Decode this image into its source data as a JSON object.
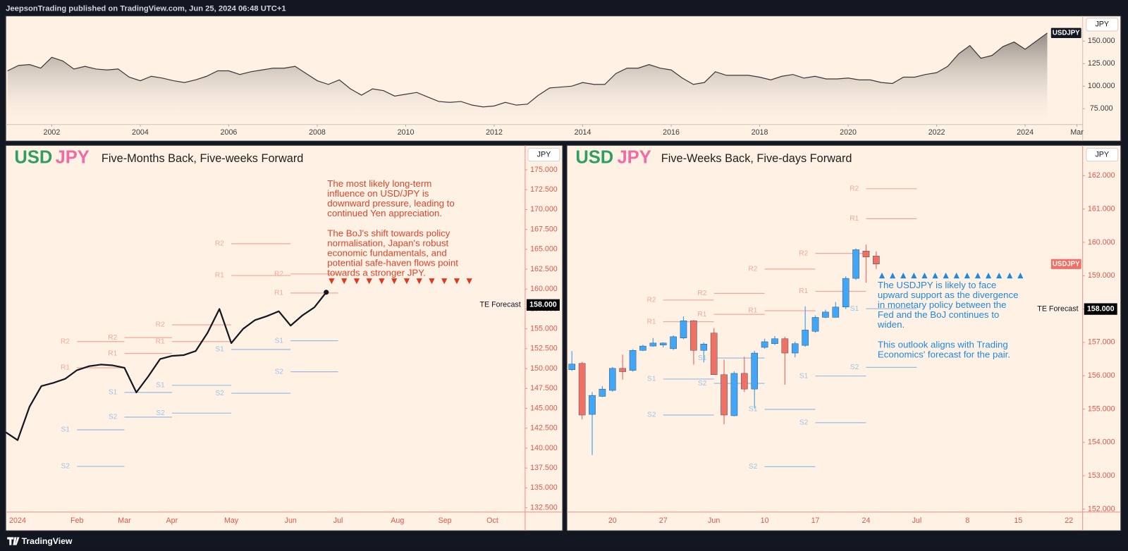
{
  "header": "JeepsonTrading published on TradingView.com, Jun 25, 2024 06:48 UTC+1",
  "footer": "TradingView",
  "chart_data": [
    {
      "type": "area",
      "name": "USDJPY",
      "axis_unit": "JPY",
      "color": "#3b3838",
      "x": [
        2001,
        2001.25,
        2001.5,
        2001.75,
        2002,
        2002.25,
        2002.5,
        2002.75,
        2003,
        2003.25,
        2003.5,
        2003.75,
        2004,
        2004.25,
        2004.5,
        2004.75,
        2005,
        2005.25,
        2005.5,
        2005.75,
        2006,
        2006.25,
        2006.5,
        2006.75,
        2007,
        2007.25,
        2007.5,
        2007.75,
        2008,
        2008.25,
        2008.5,
        2008.75,
        2009,
        2009.25,
        2009.5,
        2009.75,
        2010,
        2010.25,
        2010.5,
        2010.75,
        2011,
        2011.25,
        2011.5,
        2011.75,
        2012,
        2012.25,
        2012.5,
        2012.75,
        2013,
        2013.25,
        2013.5,
        2013.75,
        2014,
        2014.25,
        2014.5,
        2014.75,
        2015,
        2015.25,
        2015.5,
        2015.75,
        2016,
        2016.25,
        2016.5,
        2016.75,
        2017,
        2017.25,
        2017.5,
        2017.75,
        2018,
        2018.25,
        2018.5,
        2018.75,
        2019,
        2019.25,
        2019.5,
        2019.75,
        2020,
        2020.25,
        2020.5,
        2020.75,
        2021,
        2021.25,
        2021.5,
        2021.75,
        2022,
        2022.25,
        2022.5,
        2022.75,
        2023,
        2023.25,
        2023.5,
        2023.75,
        2024,
        2024.25,
        2024.5
      ],
      "values": [
        117,
        123,
        124,
        120,
        132,
        128,
        119,
        122,
        119,
        118,
        119,
        110,
        106,
        111,
        109,
        106,
        104,
        107,
        111,
        117,
        117,
        113,
        116,
        118,
        120,
        120,
        122,
        114,
        106,
        102,
        107,
        97,
        90,
        97,
        95,
        89,
        91,
        93,
        88,
        83,
        82,
        83,
        79,
        77,
        78,
        82,
        79,
        80,
        90,
        98,
        99,
        100,
        104,
        102,
        102,
        114,
        120,
        120,
        124,
        120,
        118,
        109,
        102,
        104,
        116,
        112,
        112,
        112,
        110,
        107,
        111,
        113,
        109,
        111,
        108,
        108,
        109,
        107,
        107,
        104,
        103,
        110,
        110,
        113,
        115,
        122,
        136,
        145,
        131,
        134,
        144,
        149,
        141,
        150,
        159
      ],
      "xlim": [
        2000.96,
        2025.3
      ],
      "xticks": [
        2002,
        2004,
        2006,
        2008,
        2010,
        2012,
        2014,
        2016,
        2018,
        2020,
        2022,
        2024,
        {
          "value": 2025.17,
          "label": "Mar"
        }
      ],
      "ylim": [
        57.45,
        177.9
      ],
      "yticks": [
        {
          "value": 75,
          "label": "75.000"
        },
        {
          "value": 100,
          "label": "100.000"
        },
        {
          "value": 125,
          "label": "125.000"
        },
        {
          "value": 150,
          "label": "150.000"
        }
      ]
    },
    {
      "type": "line",
      "base": "USD",
      "quote": "JPY",
      "title": "Five-Months Back, Five-weeks Forward",
      "axis_unit": "JPY",
      "color": "#131722",
      "categories": [
        null,
        "2024",
        null,
        null,
        null,
        null,
        "Feb",
        null,
        null,
        null,
        "Mar",
        null,
        null,
        null,
        "Apr",
        null,
        null,
        null,
        null,
        "May",
        null,
        null,
        null,
        null,
        "Jun",
        null,
        null,
        null,
        "Jul",
        null,
        null,
        null,
        null,
        "Aug",
        null,
        null,
        null,
        "Sep",
        null,
        null,
        null,
        "Oct",
        null,
        null,
        null
      ],
      "values": [
        142.0,
        141.0,
        145.2,
        147.8,
        148.2,
        148.7,
        149.8,
        150.3,
        150.5,
        150.4,
        150.1,
        147.0,
        149.0,
        151.2,
        151.6,
        151.7,
        152.2,
        154.5,
        157.5,
        153.2,
        155.0,
        156.1,
        156.6,
        157.2,
        155.4,
        156.7,
        157.7,
        159.6,
        null,
        null,
        null,
        null,
        null,
        null,
        null,
        null,
        null,
        null,
        null,
        null,
        null,
        null,
        null,
        null,
        null
      ],
      "ylim": [
        131.96,
        178.07
      ],
      "yticks": [
        {
          "value": 132.5,
          "label": "132.500"
        },
        {
          "value": 135,
          "label": "135.000"
        },
        {
          "value": 137.5,
          "label": "137.500"
        },
        {
          "value": 140,
          "label": "140.000"
        },
        {
          "value": 142.5,
          "label": "142.500"
        },
        {
          "value": 145,
          "label": "145.000"
        },
        {
          "value": 147.5,
          "label": "147.500"
        },
        {
          "value": 150,
          "label": "150.000"
        },
        {
          "value": 152.5,
          "label": "152.500"
        },
        {
          "value": 155,
          "label": "155.000"
        },
        {
          "value": 157.5,
          "label": "157.500"
        },
        {
          "value": 160,
          "label": "160.000"
        },
        {
          "value": 162.5,
          "label": "162.500"
        },
        {
          "value": 165,
          "label": "165.000"
        },
        {
          "value": 167.5,
          "label": "167.500"
        },
        {
          "value": 170,
          "label": "170.000"
        },
        {
          "value": 172.5,
          "label": "172.500"
        },
        {
          "value": 175,
          "label": "175.000"
        }
      ],
      "pivots": [
        {
          "levels": [
            {
              "label": "R2",
              "value": 153.4
            },
            {
              "label": "R1",
              "value": 150.1
            },
            {
              "label": "S1",
              "value": 142.3
            },
            {
              "label": "S2",
              "value": 137.7
            }
          ]
        },
        {
          "levels": [
            {
              "label": "R2",
              "value": 153.9
            },
            {
              "label": "R1",
              "value": 151.9
            },
            {
              "label": "S1",
              "value": 147.0
            },
            {
              "label": "S2",
              "value": 143.9
            }
          ]
        },
        {
          "levels": [
            {
              "label": "R2",
              "value": 155.5
            },
            {
              "label": "R1",
              "value": 153.4
            },
            {
              "label": "S1",
              "value": 147.9
            },
            {
              "label": "S2",
              "value": 144.4
            }
          ]
        },
        {
          "levels": [
            {
              "label": "R2",
              "value": 165.7
            },
            {
              "label": "R1",
              "value": 161.7
            },
            {
              "label": "S1",
              "value": 152.4
            },
            {
              "label": "S2",
              "value": 146.9
            }
          ]
        },
        {
          "levels": [
            {
              "label": "R2",
              "value": 161.9
            },
            {
              "label": "R1",
              "value": 159.5
            },
            {
              "label": "S1",
              "value": 153.5
            },
            {
              "label": "S2",
              "value": 149.6
            }
          ]
        }
      ],
      "forecast": {
        "text": "TE Forecast",
        "value": 158,
        "value_label": "158.000"
      },
      "annotation": [
        [
          "The most likely long-term",
          "influence on USD/JPY is",
          "downward pressure, leading to",
          "continued Yen appreciation."
        ],
        [
          "The BoJ's shift towards policy",
          "normalisation, Japan's robust",
          "economic fundamentals, and",
          "potential safe-haven flows point",
          "towards a stronger JPY."
        ]
      ],
      "annotation_color": "#e0432a"
    },
    {
      "type": "candlestick",
      "name": "USDJPY",
      "base": "USD",
      "quote": "JPY",
      "title": "Five-Weeks Back, Five-days Forward",
      "axis_unit": "JPY",
      "up_color": "#42a5f5",
      "down_color": "#ef7166",
      "categories": [
        null,
        null,
        null,
        null,
        "20",
        null,
        null,
        null,
        null,
        "27",
        null,
        null,
        null,
        null,
        "Jun",
        null,
        null,
        null,
        null,
        "10",
        null,
        null,
        null,
        null,
        "17",
        null,
        null,
        null,
        null,
        "24",
        null,
        null,
        null,
        null,
        "Jul",
        null,
        null,
        null,
        null,
        "8",
        null,
        null,
        null,
        null,
        "15",
        null,
        null,
        null,
        null,
        "22",
        null,
        null,
        null
      ],
      "open": [
        156.18,
        156.37,
        154.84,
        155.38,
        155.56,
        156.22,
        156.16,
        156.76,
        156.89,
        156.92,
        156.81,
        157.13,
        157.65,
        156.76,
        157.28,
        156.03,
        154.8,
        156.07,
        155.6,
        156.85,
        156.96,
        157.11,
        156.68,
        156.91,
        157.33,
        157.75,
        157.75,
        158.06,
        158.92,
        159.74,
        159.59,
        null,
        null,
        null,
        null,
        null,
        null,
        null,
        null,
        null,
        null,
        null,
        null,
        null,
        null,
        null,
        null,
        null,
        null,
        null,
        null,
        null,
        null
      ],
      "high": [
        156.74,
        156.42,
        155.51,
        155.69,
        156.26,
        156.63,
        156.8,
        156.93,
        157.13,
        157.0,
        157.21,
        157.78,
        157.67,
        157.0,
        157.43,
        156.48,
        156.13,
        156.57,
        156.75,
        157.11,
        157.19,
        157.17,
        157.02,
        158.08,
        157.81,
        157.98,
        158.21,
        158.98,
        159.82,
        159.93,
        159.73,
        null,
        null,
        null,
        null,
        null,
        null,
        null,
        null,
        null,
        null,
        null,
        null,
        null,
        null,
        null,
        null,
        null,
        null,
        null,
        null,
        null,
        null
      ],
      "low": [
        156.14,
        154.69,
        153.62,
        155.36,
        155.52,
        155.88,
        156.12,
        156.74,
        156.87,
        156.85,
        156.77,
        157.09,
        156.33,
        156.4,
        156.03,
        154.54,
        154.78,
        155.51,
        155.02,
        156.81,
        156.92,
        155.73,
        156.55,
        156.87,
        157.29,
        157.73,
        157.75,
        158.0,
        158.87,
        158.79,
        159.2,
        null,
        null,
        null,
        null,
        null,
        null,
        null,
        null,
        null,
        null,
        null,
        null,
        null,
        null,
        null,
        null,
        null,
        null,
        null,
        null,
        null,
        null
      ],
      "close": [
        156.35,
        154.82,
        155.41,
        155.6,
        156.22,
        156.12,
        156.76,
        156.89,
        156.98,
        156.98,
        157.17,
        157.65,
        156.76,
        156.95,
        156.03,
        154.82,
        156.07,
        155.6,
        156.68,
        157.02,
        157.11,
        156.68,
        156.96,
        157.37,
        157.75,
        157.91,
        158.06,
        158.92,
        159.78,
        159.56,
        159.35,
        null,
        null,
        null,
        null,
        null,
        null,
        null,
        null,
        null,
        null,
        null,
        null,
        null,
        null,
        null,
        null,
        null,
        null,
        null,
        null,
        null,
        null
      ],
      "ylim": [
        151.91,
        162.91
      ],
      "yticks": [
        {
          "value": 152,
          "label": "152.000"
        },
        {
          "value": 153,
          "label": "153.000"
        },
        {
          "value": 154,
          "label": "154.000"
        },
        {
          "value": 155,
          "label": "155.000"
        },
        {
          "value": 156,
          "label": "156.000"
        },
        {
          "value": 157,
          "label": "157.000"
        },
        {
          "value": 158,
          "label": "158.000"
        },
        {
          "value": 159,
          "label": "159.000"
        },
        {
          "value": 160,
          "label": "160.000"
        },
        {
          "value": 161,
          "label": "161.000"
        },
        {
          "value": 162,
          "label": "162.000"
        }
      ],
      "pivots": [
        {
          "levels": [
            {
              "label": "R2",
              "value": 158.27
            },
            {
              "label": "R1",
              "value": 157.62
            },
            {
              "label": "S1",
              "value": 155.9
            },
            {
              "label": "S2",
              "value": 154.82
            }
          ]
        },
        {
          "levels": [
            {
              "label": "R2",
              "value": 158.47
            },
            {
              "label": "R1",
              "value": 157.84
            },
            {
              "label": "S1",
              "value": 156.53
            },
            {
              "label": "S2",
              "value": 155.77
            }
          ]
        },
        {
          "levels": [
            {
              "label": "R2",
              "value": 159.2
            },
            {
              "label": "R1",
              "value": 157.95
            },
            {
              "label": "S1",
              "value": 154.99
            },
            {
              "label": "S2",
              "value": 153.27
            }
          ]
        },
        {
          "levels": [
            {
              "label": "R2",
              "value": 159.67
            },
            {
              "label": "R1",
              "value": 158.53
            },
            {
              "label": "S1",
              "value": 155.99
            },
            {
              "label": "S2",
              "value": 154.59
            }
          ]
        },
        {
          "levels": [
            {
              "label": "R2",
              "value": 161.61
            },
            {
              "label": "R1",
              "value": 160.71
            },
            {
              "label": "S1",
              "value": 158.01
            },
            {
              "label": "S2",
              "value": 156.25
            }
          ]
        }
      ],
      "forecast": {
        "text": "TE Forecast",
        "value": 158,
        "value_label": "158.000"
      },
      "annotation": [
        [
          "The USDJPY is likely to face",
          "upward support as the divergence",
          "in monetary policy between the",
          "Fed and the BoJ continues to",
          "widen."
        ],
        [
          "This outlook aligns with Trading",
          "Economics' forecast for the pair."
        ]
      ],
      "annotation_color": "#1e88e5"
    }
  ]
}
